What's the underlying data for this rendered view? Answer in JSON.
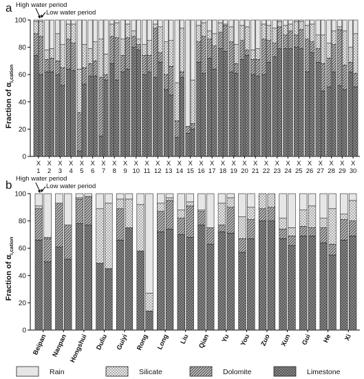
{
  "panel_labels": [
    "a",
    "b"
  ],
  "period_labels": {
    "high": "High water period",
    "low": "Low water period"
  },
  "ylabel": {
    "main": "Fraction of α",
    "sub": "i,cation"
  },
  "legend": [
    {
      "key": "rain",
      "label": "Rain"
    },
    {
      "key": "silicate",
      "label": "Silicate"
    },
    {
      "key": "dolomite",
      "label": "Dolomite"
    },
    {
      "key": "limestone",
      "label": "Limestone"
    }
  ],
  "colors": {
    "rain": "#e6e6e6",
    "silicate": "#cfcfcf",
    "dolomite": "#9a9a9a",
    "limestone": "#8a8a8a",
    "stroke": "#222222"
  },
  "chart_data": [
    {
      "type": "bar",
      "panel": "a",
      "stacked": true,
      "ylim": [
        0,
        100
      ],
      "yticks": [
        0,
        20,
        40,
        60,
        80,
        100
      ],
      "series_order": [
        "limestone",
        "dolomite",
        "silicate",
        "rain"
      ],
      "categories": [
        {
          "label": "X",
          "num": "1"
        },
        {
          "label": "X",
          "num": "2"
        },
        {
          "label": "X",
          "num": "3"
        },
        {
          "label": "X",
          "num": "4"
        },
        {
          "label": "X",
          "num": "5"
        },
        {
          "label": "X",
          "num": "6"
        },
        {
          "label": "X",
          "num": "7"
        },
        {
          "label": "X",
          "num": "8"
        },
        {
          "label": "X",
          "num": "9"
        },
        {
          "label": "X",
          "num": "10"
        },
        {
          "label": "X",
          "num": "11"
        },
        {
          "label": "X",
          "num": "12"
        },
        {
          "label": "X",
          "num": "13"
        },
        {
          "label": "X",
          "num": "14"
        },
        {
          "label": "X",
          "num": "15"
        },
        {
          "label": "X",
          "num": "16"
        },
        {
          "label": "X",
          "num": "17"
        },
        {
          "label": "X",
          "num": "18"
        },
        {
          "label": "X",
          "num": "19"
        },
        {
          "label": "X",
          "num": "20"
        },
        {
          "label": "X",
          "num": "21"
        },
        {
          "label": "X",
          "num": "22"
        },
        {
          "label": "X",
          "num": "23"
        },
        {
          "label": "X",
          "num": "24"
        },
        {
          "label": "X",
          "num": "25"
        },
        {
          "label": "X",
          "num": "26"
        },
        {
          "label": "X",
          "num": "27"
        },
        {
          "label": "X",
          "num": "28"
        },
        {
          "label": "X",
          "num": "29"
        },
        {
          "label": "X",
          "num": "30"
        }
      ],
      "high": [
        {
          "limestone": 74,
          "dolomite": 16,
          "silicate": 9,
          "rain": 1
        },
        {
          "limestone": 62,
          "dolomite": 9,
          "silicate": 7,
          "rain": 22
        },
        {
          "limestone": 60,
          "dolomite": 10,
          "silicate": 20,
          "rain": 10
        },
        {
          "limestone": 64,
          "dolomite": 22,
          "silicate": 11,
          "rain": 3
        },
        {
          "limestone": 4,
          "dolomite": 28,
          "silicate": 32,
          "rain": 36
        },
        {
          "limestone": 59,
          "dolomite": 9,
          "silicate": 11,
          "rain": 21
        },
        {
          "limestone": 15,
          "dolomite": 43,
          "silicate": 28,
          "rain": 14
        },
        {
          "limestone": 68,
          "dolomite": 20,
          "silicate": 9,
          "rain": 3
        },
        {
          "limestone": 62,
          "dolomite": 12,
          "silicate": 12,
          "rain": 14
        },
        {
          "limestone": 80,
          "dolomite": 8,
          "silicate": 4,
          "rain": 8
        },
        {
          "limestone": 60,
          "dolomite": 14,
          "silicate": 8,
          "rain": 18
        },
        {
          "limestone": 58,
          "dolomite": 36,
          "silicate": 3,
          "rain": 3
        },
        {
          "limestone": 49,
          "dolomite": 11,
          "silicate": 24,
          "rain": 16
        },
        {
          "limestone": 14,
          "dolomite": 12,
          "silicate": 28,
          "rain": 46
        },
        {
          "limestone": 17,
          "dolomite": 5,
          "silicate": 0,
          "rain": 78
        },
        {
          "limestone": 69,
          "dolomite": 15,
          "silicate": 12,
          "rain": 4
        },
        {
          "limestone": 72,
          "dolomite": 14,
          "silicate": 6,
          "rain": 8
        },
        {
          "limestone": 79,
          "dolomite": 12,
          "silicate": 7,
          "rain": 2
        },
        {
          "limestone": 62,
          "dolomite": 22,
          "silicate": 11,
          "rain": 5
        },
        {
          "limestone": 71,
          "dolomite": 14,
          "silicate": 11,
          "rain": 4
        },
        {
          "limestone": 60,
          "dolomite": 11,
          "silicate": 7,
          "rain": 22
        },
        {
          "limestone": 60,
          "dolomite": 26,
          "silicate": 11,
          "rain": 3
        },
        {
          "limestone": 73,
          "dolomite": 10,
          "silicate": 11,
          "rain": 6
        },
        {
          "limestone": 79,
          "dolomite": 10,
          "silicate": 7,
          "rain": 4
        },
        {
          "limestone": 80,
          "dolomite": 9,
          "silicate": 10,
          "rain": 1
        },
        {
          "limestone": 62,
          "dolomite": 24,
          "silicate": 10,
          "rain": 4
        },
        {
          "limestone": 69,
          "dolomite": 10,
          "silicate": 10,
          "rain": 11
        },
        {
          "limestone": 51,
          "dolomite": 21,
          "silicate": 11,
          "rain": 17
        },
        {
          "limestone": 52,
          "dolomite": 41,
          "silicate": 2,
          "rain": 5
        },
        {
          "limestone": 62,
          "dolomite": 7,
          "silicate": 11,
          "rain": 20
        }
      ],
      "low": [
        {
          "limestone": 60,
          "dolomite": 28,
          "silicate": 11,
          "rain": 1
        },
        {
          "limestone": 62,
          "dolomite": 10,
          "silicate": 7,
          "rain": 21
        },
        {
          "limestone": 52,
          "dolomite": 13,
          "silicate": 17,
          "rain": 18
        },
        {
          "limestone": 63,
          "dolomite": 20,
          "silicate": 14,
          "rain": 3
        },
        {
          "limestone": 53,
          "dolomite": 12,
          "silicate": 17,
          "rain": 18
        },
        {
          "limestone": 59,
          "dolomite": 11,
          "silicate": 14,
          "rain": 16
        },
        {
          "limestone": 56,
          "dolomite": 4,
          "silicate": 15,
          "rain": 25
        },
        {
          "limestone": 56,
          "dolomite": 31,
          "silicate": 11,
          "rain": 2
        },
        {
          "limestone": 64,
          "dolomite": 23,
          "silicate": 10,
          "rain": 3
        },
        {
          "limestone": 78,
          "dolomite": 4,
          "silicate": 4,
          "rain": 14
        },
        {
          "limestone": 62,
          "dolomite": 12,
          "silicate": 11,
          "rain": 15
        },
        {
          "limestone": 69,
          "dolomite": 7,
          "silicate": 19,
          "rain": 5
        },
        {
          "limestone": 45,
          "dolomite": 21,
          "silicate": 19,
          "rain": 15
        },
        {
          "limestone": 58,
          "dolomite": 4,
          "silicate": 32,
          "rain": 6
        },
        {
          "limestone": 20,
          "dolomite": 4,
          "silicate": 32,
          "rain": 44
        },
        {
          "limestone": 61,
          "dolomite": 27,
          "silicate": 10,
          "rain": 2
        },
        {
          "limestone": 64,
          "dolomite": 17,
          "silicate": 9,
          "rain": 10
        },
        {
          "limestone": 77,
          "dolomite": 19,
          "silicate": 1,
          "rain": 3
        },
        {
          "limestone": 61,
          "dolomite": 7,
          "silicate": 14,
          "rain": 18
        },
        {
          "limestone": 74,
          "dolomite": 4,
          "silicate": 17,
          "rain": 5
        },
        {
          "limestone": 59,
          "dolomite": 12,
          "silicate": 8,
          "rain": 21
        },
        {
          "limestone": 69,
          "dolomite": 16,
          "silicate": 11,
          "rain": 4
        },
        {
          "limestone": 79,
          "dolomite": 16,
          "silicate": 4,
          "rain": 1
        },
        {
          "limestone": 79,
          "dolomite": 13,
          "silicate": 5,
          "rain": 3
        },
        {
          "limestone": 79,
          "dolomite": 14,
          "silicate": 6,
          "rain": 1
        },
        {
          "limestone": 76,
          "dolomite": 8,
          "silicate": 13,
          "rain": 3
        },
        {
          "limestone": 48,
          "dolomite": 20,
          "silicate": 21,
          "rain": 11
        },
        {
          "limestone": 62,
          "dolomite": 20,
          "silicate": 10,
          "rain": 8
        },
        {
          "limestone": 49,
          "dolomite": 18,
          "silicate": 25,
          "rain": 8
        },
        {
          "limestone": 51,
          "dolomite": 10,
          "silicate": 29,
          "rain": 10
        }
      ]
    },
    {
      "type": "bar",
      "panel": "b",
      "stacked": true,
      "ylim": [
        0,
        100
      ],
      "yticks": [
        0,
        20,
        40,
        60,
        80,
        100
      ],
      "series_order": [
        "limestone",
        "dolomite",
        "silicate",
        "rain"
      ],
      "categories": [
        "Beipan",
        "Nanpan",
        "Hongshui",
        "Duliu",
        "Guiyi",
        "Rong",
        "Long",
        "Liu",
        "Qian",
        "Yu",
        "You",
        "Zuo",
        "Xun",
        "Gui",
        "He",
        "Xi"
      ],
      "high": [
        {
          "limestone": 66,
          "dolomite": 23,
          "silicate": 2,
          "rain": 9
        },
        {
          "limestone": 61,
          "dolomite": 32,
          "silicate": 0,
          "rain": 7
        },
        {
          "limestone": 78,
          "dolomite": 18,
          "silicate": 1,
          "rain": 3
        },
        {
          "limestone": 49,
          "dolomite": 0,
          "silicate": 40,
          "rain": 11
        },
        {
          "limestone": 66,
          "dolomite": 23,
          "silicate": 7,
          "rain": 4
        },
        {
          "limestone": 58,
          "dolomite": 0,
          "silicate": 34,
          "rain": 8
        },
        {
          "limestone": 72,
          "dolomite": 15,
          "silicate": 6,
          "rain": 7
        },
        {
          "limestone": 70,
          "dolomite": 12,
          "silicate": 6,
          "rain": 12
        },
        {
          "limestone": 77,
          "dolomite": 10,
          "silicate": 1,
          "rain": 12
        },
        {
          "limestone": 72,
          "dolomite": 5,
          "silicate": 16,
          "rain": 7
        },
        {
          "limestone": 57,
          "dolomite": 10,
          "silicate": 16,
          "rain": 17
        },
        {
          "limestone": 80,
          "dolomite": 9,
          "silicate": 11,
          "rain": 0
        },
        {
          "limestone": 67,
          "dolomite": 7,
          "silicate": 8,
          "rain": 18
        },
        {
          "limestone": 69,
          "dolomite": 7,
          "silicate": 12,
          "rain": 12
        },
        {
          "limestone": 64,
          "dolomite": 11,
          "silicate": 7,
          "rain": 18
        },
        {
          "limestone": 66,
          "dolomite": 15,
          "silicate": 4,
          "rain": 15
        }
      ],
      "low": [
        {
          "limestone": 50,
          "dolomite": 17,
          "silicate": 1,
          "rain": 32
        },
        {
          "limestone": 52,
          "dolomite": 25,
          "silicate": 0,
          "rain": 23
        },
        {
          "limestone": 77,
          "dolomite": 21,
          "silicate": 0,
          "rain": 2
        },
        {
          "limestone": 45,
          "dolomite": 0,
          "silicate": 48,
          "rain": 7
        },
        {
          "limestone": 75,
          "dolomite": 0,
          "silicate": 21,
          "rain": 4
        },
        {
          "limestone": 14,
          "dolomite": 0,
          "silicate": 13,
          "rain": 73
        },
        {
          "limestone": 74,
          "dolomite": 21,
          "silicate": 2,
          "rain": 3
        },
        {
          "limestone": 68,
          "dolomite": 23,
          "silicate": 3,
          "rain": 6
        },
        {
          "limestone": 63,
          "dolomite": 12,
          "silicate": 0,
          "rain": 25
        },
        {
          "limestone": 71,
          "dolomite": 19,
          "silicate": 7,
          "rain": 3
        },
        {
          "limestone": 67,
          "dolomite": 14,
          "silicate": 9,
          "rain": 10
        },
        {
          "limestone": 80,
          "dolomite": 10,
          "silicate": 10,
          "rain": 0
        },
        {
          "limestone": 62,
          "dolomite": 7,
          "silicate": 6,
          "rain": 25
        },
        {
          "limestone": 69,
          "dolomite": 6,
          "silicate": 16,
          "rain": 9
        },
        {
          "limestone": 55,
          "dolomite": 8,
          "silicate": 26,
          "rain": 11
        },
        {
          "limestone": 69,
          "dolomite": 11,
          "silicate": 15,
          "rain": 5
        }
      ]
    }
  ]
}
